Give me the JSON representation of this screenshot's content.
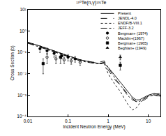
{
  "chart_data": {
    "type": "line",
    "title": "¹³⁰Te(n,γ)¹³¹Te",
    "x_label": "Incident Neutron Energy (MeV)",
    "y_label": "Cross Section (b)",
    "log": true,
    "grid": false,
    "legend": "upper right",
    "xlim": [
      0.01,
      20
    ],
    "ylim": [
      0.0001,
      10
    ],
    "xticks": [
      0.01,
      0.1,
      1,
      10
    ],
    "yticks": [
      {
        "value": 0.0001,
        "label": "10⁻⁴"
      },
      {
        "value": 0.001,
        "label": "10⁻³"
      },
      {
        "value": 0.01,
        "label": "10⁻²"
      },
      {
        "value": 0.1,
        "label": "10⁻¹"
      },
      {
        "value": 1,
        "label": "10⁰"
      },
      {
        "value": 10,
        "label": "10¹"
      }
    ],
    "series": [
      {
        "name": "Present",
        "type": "line",
        "line_style": "solid",
        "color": "#000000",
        "x": [
          0.01,
          0.02,
          0.05,
          0.1,
          0.2,
          0.4,
          0.6,
          0.8,
          1,
          1.5,
          2,
          3,
          4,
          5,
          6,
          8,
          10,
          14,
          20
        ],
        "values": [
          0.3,
          0.2,
          0.11,
          0.07,
          0.045,
          0.035,
          0.03,
          0.03,
          0.02,
          0.008,
          0.004,
          0.0015,
          0.0008,
          0.0006,
          0.0006,
          0.0008,
          0.001,
          0.0012,
          0.001
        ]
      },
      {
        "name": "JENDL-4.0",
        "type": "line",
        "line_style": "dash",
        "color": "#000000",
        "x": [
          0.01,
          0.02,
          0.05,
          0.1,
          0.2,
          0.4,
          0.6,
          0.8,
          1,
          1.5,
          2,
          3,
          4,
          5,
          6,
          8,
          10,
          14,
          20
        ],
        "values": [
          0.28,
          0.19,
          0.1,
          0.065,
          0.045,
          0.035,
          0.035,
          0.04,
          0.015,
          0.005,
          0.003,
          0.0012,
          0.0007,
          0.0005,
          0.0005,
          0.0006,
          0.0008,
          0.0011,
          0.0012
        ]
      },
      {
        "name": "ENDF/B-VIII.1",
        "type": "line",
        "line_style": "dot",
        "color": "#000000",
        "x": [
          0.01,
          0.02,
          0.05,
          0.1,
          0.2,
          0.4,
          0.6,
          0.8,
          1,
          1.5,
          2,
          3,
          4,
          5,
          6,
          8,
          10,
          14,
          20
        ],
        "values": [
          0.3,
          0.2,
          0.11,
          0.07,
          0.045,
          0.033,
          0.03,
          0.03,
          0.01,
          0.003,
          0.0015,
          0.0004,
          0.0002,
          0.00025,
          0.0004,
          0.0007,
          0.0009,
          0.001,
          0.0009
        ]
      },
      {
        "name": "JEFF-3.2",
        "type": "line",
        "line_style": "dashdot",
        "color": "#000000",
        "x": [
          0.01,
          0.02,
          0.05,
          0.1,
          0.2,
          0.4,
          0.6,
          0.8,
          1,
          1.5,
          2,
          3,
          4,
          5,
          6,
          8,
          10,
          14,
          20
        ],
        "values": [
          0.27,
          0.18,
          0.1,
          0.065,
          0.04,
          0.032,
          0.03,
          0.035,
          0.02,
          0.006,
          0.003,
          0.001,
          0.0006,
          0.0005,
          0.0005,
          0.0007,
          0.0009,
          0.001,
          0.0009
        ]
      },
      {
        "name": "Bergman+ (1974)",
        "type": "scatter",
        "marker": "circle",
        "color": "#000000",
        "x": [
          0.02,
          0.03,
          0.045,
          0.07,
          0.1,
          0.15
        ],
        "values": [
          0.15,
          0.12,
          0.09,
          0.07,
          0.06,
          0.05
        ],
        "errors": [
          0.05,
          0.04,
          0.03,
          0.02,
          0.02,
          0.015
        ]
      },
      {
        "name": "Macklin+(1967)",
        "type": "scatter",
        "marker": "circle-open",
        "color": "#000000",
        "x": [
          0.03,
          0.05,
          0.08,
          0.12,
          0.2
        ],
        "values": [
          0.06,
          0.05,
          0.045,
          0.04,
          0.035
        ],
        "errors": [
          0.03,
          0.02,
          0.015,
          0.012,
          0.01
        ]
      },
      {
        "name": "Bergman+ (1965)",
        "type": "scatter",
        "marker": "square",
        "color": "#000000",
        "x": [
          0.024,
          0.065,
          2
        ],
        "values": [
          0.03,
          0.06,
          0.025
        ],
        "errors": [
          0.02,
          0.03,
          0.01
        ]
      },
      {
        "name": "Beghian+ (1949)",
        "type": "scatter",
        "marker": "triangle-up",
        "color": "#000000",
        "x": [
          2
        ],
        "values": [
          0.06
        ],
        "errors": [
          0.015
        ]
      }
    ]
  }
}
